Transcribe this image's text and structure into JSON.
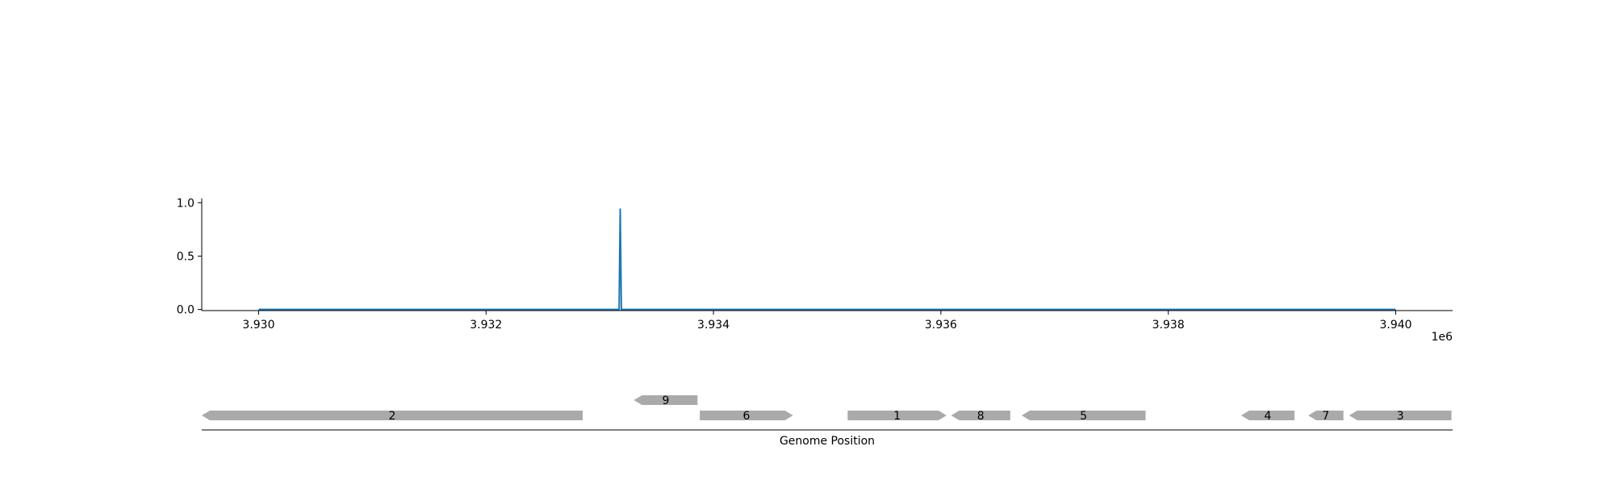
{
  "chart_data": [
    {
      "type": "line",
      "x_ticks": [
        "3.930",
        "3.932",
        "3.934",
        "3.936",
        "3.938",
        "3.940"
      ],
      "x_tick_values": [
        3930000,
        3932000,
        3934000,
        3936000,
        3938000,
        3940000
      ],
      "x_offset_label": "1e6",
      "y_ticks": [
        "0.0",
        "0.5",
        "1.0"
      ],
      "y_tick_values": [
        0.0,
        0.5,
        1.0
      ],
      "xlim": [
        3929500,
        3940500
      ],
      "ylim": [
        -0.01,
        1.04
      ],
      "grid": false,
      "series": [
        {
          "color": "#1f77b4",
          "x": [
            3930000,
            3933170,
            3933180,
            3933190,
            3940000
          ],
          "y": [
            0.0,
            0.0,
            0.94,
            0.0,
            0.0
          ]
        }
      ]
    },
    {
      "type": "gene_map",
      "xlabel": "Genome Position",
      "gene_color": "#aaaaaa",
      "genes": [
        {
          "label": "2",
          "start": 3929500,
          "end": 3932850,
          "strand": "-",
          "track": 0
        },
        {
          "label": "9",
          "start": 3933300,
          "end": 3933860,
          "strand": "-",
          "track": 1
        },
        {
          "label": "6",
          "start": 3933880,
          "end": 3934700,
          "strand": "+",
          "track": 0
        },
        {
          "label": "1",
          "start": 3935180,
          "end": 3936050,
          "strand": "+",
          "track": 0
        },
        {
          "label": "8",
          "start": 3936090,
          "end": 3936610,
          "strand": "-",
          "track": 0
        },
        {
          "label": "5",
          "start": 3936710,
          "end": 3937800,
          "strand": "-",
          "track": 0
        },
        {
          "label": "4",
          "start": 3938640,
          "end": 3939110,
          "strand": "-",
          "track": 0
        },
        {
          "label": "7",
          "start": 3939230,
          "end": 3939540,
          "strand": "-",
          "track": 0
        },
        {
          "label": "3",
          "start": 3939590,
          "end": 3940490,
          "strand": "-",
          "track": 0
        }
      ]
    }
  ]
}
